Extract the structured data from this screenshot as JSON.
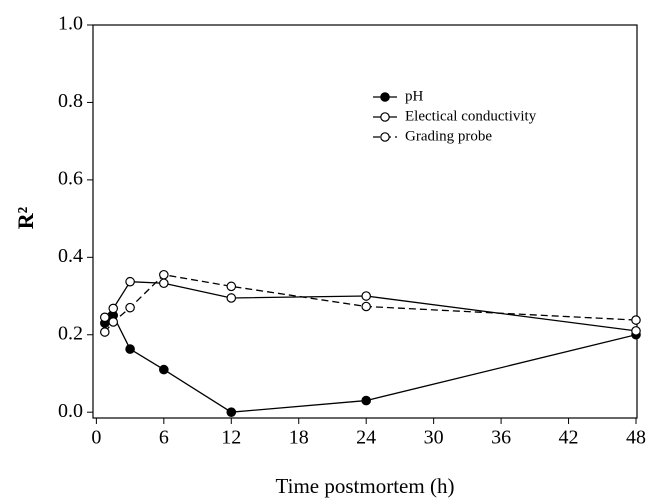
{
  "chart_data": {
    "type": "line",
    "x_label": "Time postmortem (h)",
    "y_label": "R²",
    "xlim": [
      -0.3,
      48
    ],
    "ylim": [
      -0.015,
      1.0
    ],
    "xticks": [
      0,
      6,
      12,
      18,
      24,
      30,
      36,
      42,
      48
    ],
    "yticks": [
      {
        "value": 0,
        "label": "0.0"
      },
      {
        "value": 0.2,
        "label": "0.2"
      },
      {
        "value": 0.4,
        "label": "0.4"
      },
      {
        "value": 0.6,
        "label": "0.6"
      },
      {
        "value": 0.8,
        "label": "0.8"
      },
      {
        "value": 1,
        "label": "1.0"
      }
    ],
    "x": [
      0.75,
      1.5,
      3,
      6,
      12,
      24,
      48
    ],
    "series": [
      {
        "name": "pH",
        "color": "#000000",
        "line_style": "solid",
        "marker_fill": "filled",
        "values": [
          0.23,
          0.25,
          0.163,
          0.11,
          0.0,
          0.03,
          0.2
        ]
      },
      {
        "name": "Electical conductivity",
        "color": "#000000",
        "line_style": "solid",
        "marker_fill": "open",
        "values": [
          0.245,
          0.268,
          0.337,
          0.333,
          0.295,
          0.3,
          0.21
        ]
      },
      {
        "name": "Grading probe",
        "color": "#000000",
        "line_style": "dashed",
        "marker_fill": "open",
        "values": [
          0.207,
          0.233,
          0.27,
          0.355,
          0.325,
          0.273,
          0.238
        ]
      }
    ],
    "legend": "upper right"
  }
}
